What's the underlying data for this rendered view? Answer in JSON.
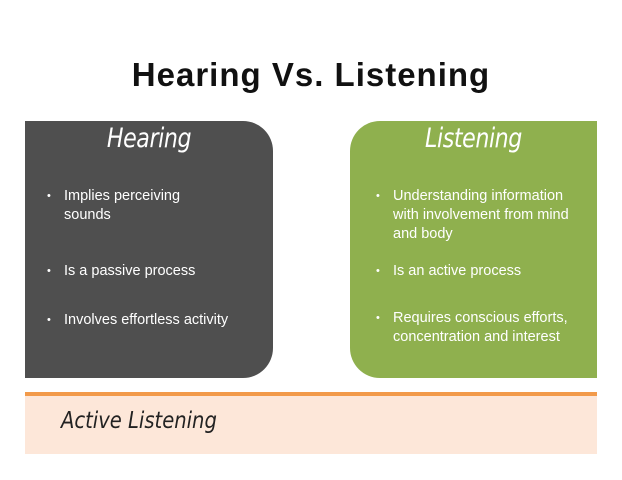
{
  "title": "Hearing Vs. Listening",
  "hearing": {
    "heading": "Hearing",
    "color": "#4f4f4f",
    "points": [
      "Implies perceiving sounds",
      "Is a passive process",
      "Involves effortless activity"
    ]
  },
  "listening": {
    "heading": "Listening",
    "color": "#8fb04e",
    "points": [
      "Understanding information with involvement from mind and body",
      "Is an active process",
      "Requires conscious efforts, concentration and interest"
    ]
  },
  "bottom": {
    "label": "Active Listening",
    "accent": "#f29a4a",
    "background": "#fde7d9"
  }
}
